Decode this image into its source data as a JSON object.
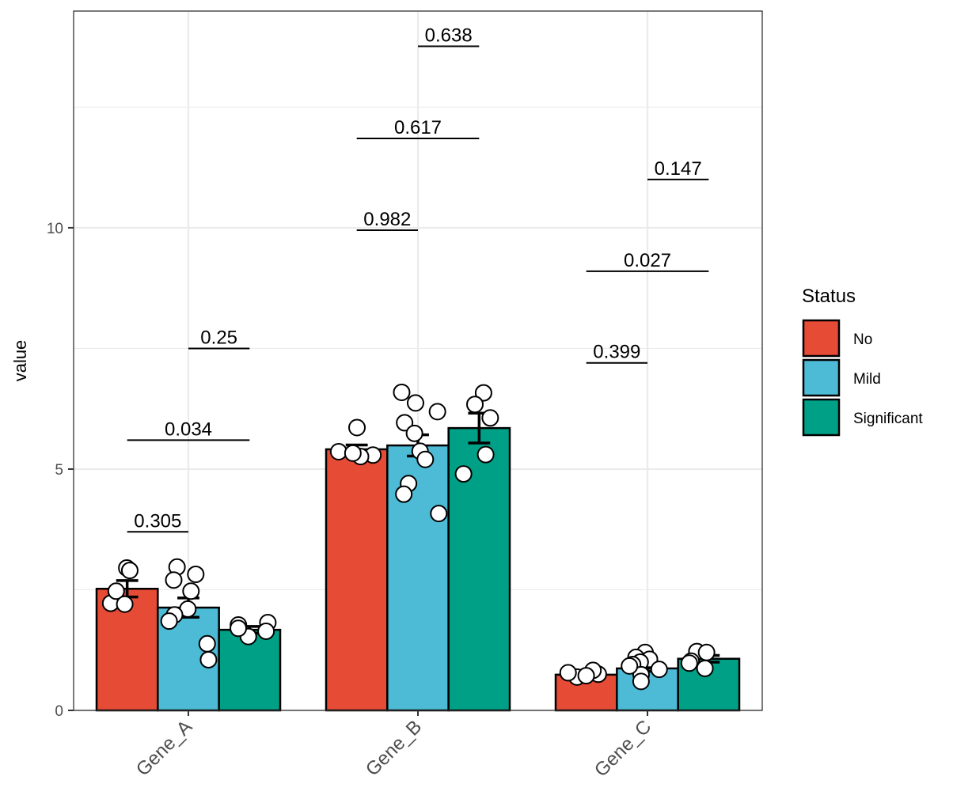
{
  "chart_data": {
    "type": "bar",
    "title": "",
    "xlabel": "",
    "ylabel": "value",
    "ylim": [
      0,
      14.49
    ],
    "yticks": [
      0,
      5,
      10
    ],
    "ytick_labels": [
      "0",
      "5",
      "10"
    ],
    "grid": true,
    "categories": [
      "Gene_A",
      "Gene_B",
      "Gene_C"
    ],
    "x_tick_rotation_deg": 45,
    "legend": {
      "title": "Status",
      "position": "right",
      "entries": [
        "No",
        "Mild",
        "Significant"
      ]
    },
    "series": [
      {
        "name": "No",
        "color": "#E64B35",
        "values": [
          2.52,
          5.41,
          0.74
        ],
        "errors": [
          0.17,
          0.09,
          0.02
        ],
        "points": [
          [
            2.95,
            2.9,
            2.22,
            2.47,
            2.2
          ],
          [
            5.86,
            5.36,
            5.29,
            5.26,
            5.33
          ],
          [
            0.69,
            0.75,
            0.83,
            0.78,
            0.72
          ]
        ]
      },
      {
        "name": "Mild",
        "color": "#4DBBD5",
        "values": [
          2.13,
          5.49,
          0.87
        ],
        "errors": [
          0.2,
          0.22,
          0.06
        ],
        "points": [
          [
            2.97,
            2.82,
            2.7,
            2.47,
            2.1,
            1.98,
            1.85,
            1.38,
            1.05
          ],
          [
            6.59,
            6.37,
            6.19,
            5.96,
            5.74,
            5.37,
            5.2,
            4.7,
            4.48,
            4.08
          ],
          [
            1.2,
            1.1,
            1.06,
            1.0,
            0.95,
            0.85,
            0.74,
            0.6,
            0.92
          ]
        ]
      },
      {
        "name": "Significant",
        "color": "#00A087",
        "values": [
          1.67,
          5.85,
          1.07
        ],
        "errors": [
          0.07,
          0.31,
          0.07
        ],
        "points": [
          [
            1.82,
            1.77,
            1.64,
            1.53,
            1.7
          ],
          [
            6.58,
            6.34,
            6.06,
            5.3,
            4.9
          ],
          [
            1.22,
            1.2,
            1.02,
            0.98,
            0.87
          ]
        ]
      }
    ],
    "annotations": [
      {
        "text": "0.305",
        "group": "Gene_A",
        "from": "No",
        "to": "Mild",
        "y": 3.7
      },
      {
        "text": "0.034",
        "group": "Gene_A",
        "from": "No",
        "to": "Significant",
        "y": 5.6
      },
      {
        "text": "0.25",
        "group": "Gene_A",
        "from": "Mild",
        "to": "Significant",
        "y": 7.5
      },
      {
        "text": "0.982",
        "group": "Gene_B",
        "from": "No",
        "to": "Mild",
        "y": 9.95
      },
      {
        "text": "0.617",
        "group": "Gene_B",
        "from": "No",
        "to": "Significant",
        "y": 11.85
      },
      {
        "text": "0.638",
        "group": "Gene_B",
        "from": "Mild",
        "to": "Significant",
        "y": 13.76
      },
      {
        "text": "0.399",
        "group": "Gene_C",
        "from": "No",
        "to": "Mild",
        "y": 7.2
      },
      {
        "text": "0.027",
        "group": "Gene_C",
        "from": "No",
        "to": "Significant",
        "y": 9.1
      },
      {
        "text": "0.147",
        "group": "Gene_C",
        "from": "Mild",
        "to": "Significant",
        "y": 11.0
      }
    ]
  }
}
